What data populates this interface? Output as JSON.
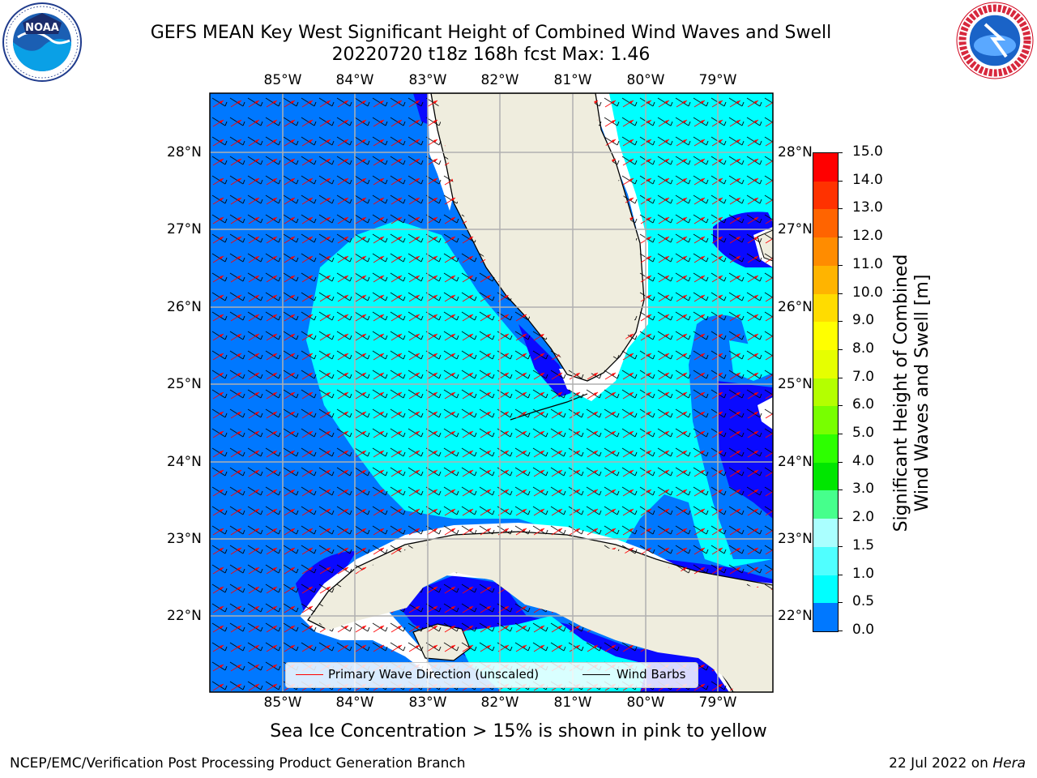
{
  "header": {
    "title_line1": "GEFS MEAN Key West Significant Height of Combined Wind Waves and Swell",
    "title_line2": "20220720 t18z 168h fcst   Max: 1.46"
  },
  "logos": {
    "noaa_text": "NOAA",
    "noaa_ring_text": "NATIONAL OCEANIC AND ATMOSPHERIC ADMINISTRATION · U.S. DEPARTMENT OF COMMERCE",
    "nws_ring_text": "NATIONAL WEATHER SERVICE"
  },
  "map": {
    "lon_labels": [
      "85°W",
      "84°W",
      "83°W",
      "82°W",
      "81°W",
      "80°W",
      "79°W"
    ],
    "lat_labels": [
      "28°N",
      "27°N",
      "26°N",
      "25°N",
      "24°N",
      "23°N",
      "22°N"
    ],
    "colors": {
      "ocean_dark": "#0a0aff",
      "ocean_mid": "#0078ff",
      "ocean_light": "#00ffff",
      "land": "#efedde",
      "wave_arrow": "#ff0000",
      "barb": "#000000",
      "grid": "#b0b0b0"
    }
  },
  "legend": {
    "wave_label": "Primary Wave Direction (unscaled)",
    "barb_label": "Wind Barbs"
  },
  "colorbar": {
    "ticks": [
      "15.0",
      "14.0",
      "13.0",
      "12.0",
      "11.0",
      "10.0",
      "9.0",
      "8.0",
      "7.0",
      "6.0",
      "5.0",
      "4.0",
      "3.0",
      "2.0",
      "1.5",
      "1.0",
      "0.5",
      "0.0"
    ],
    "colors": [
      "#ff0000",
      "#ff3200",
      "#ff6400",
      "#ff8c00",
      "#ffb400",
      "#ffdc00",
      "#ffff00",
      "#e6ff00",
      "#b4ff00",
      "#78ff00",
      "#2dff00",
      "#00e600",
      "#46ff8c",
      "#aaffff",
      "#50ffff",
      "#00ffff",
      "#0078ff",
      "#0000ff"
    ],
    "label_line1": "Significant Height of Combined",
    "label_line2": "Wind Waves and Swell [m]"
  },
  "note": "Sea Ice Concentration > 15% is shown in pink to yellow",
  "footer": {
    "left": "NCEP/EMC/Verification Post Processing Product Generation Branch",
    "right_date": "22 Jul 2022 on",
    "right_host": "Hera"
  }
}
